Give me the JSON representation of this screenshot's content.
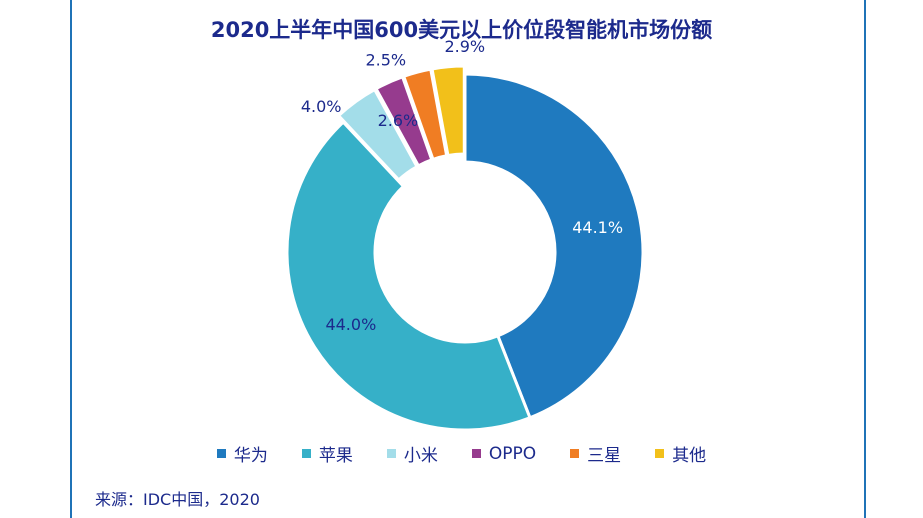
{
  "chart_data": {
    "type": "pie",
    "subtype": "donut",
    "title": "2020上半年中国600美元以上价位段智能机市场份额",
    "categories": [
      "华为",
      "苹果",
      "小米",
      "OPPO",
      "三星",
      "其他"
    ],
    "values": [
      44.1,
      44.0,
      4.0,
      2.6,
      2.5,
      2.9
    ],
    "labels": [
      "44.1%",
      "44.0%",
      "4.0%",
      "2.6%",
      "2.5%",
      "2.9%"
    ],
    "colors": [
      "#1f7abf",
      "#36b0c8",
      "#a3dde9",
      "#963b8e",
      "#f07d23",
      "#f2c01a"
    ],
    "legend_position": "bottom"
  },
  "source": "来源：IDC中国，2020"
}
